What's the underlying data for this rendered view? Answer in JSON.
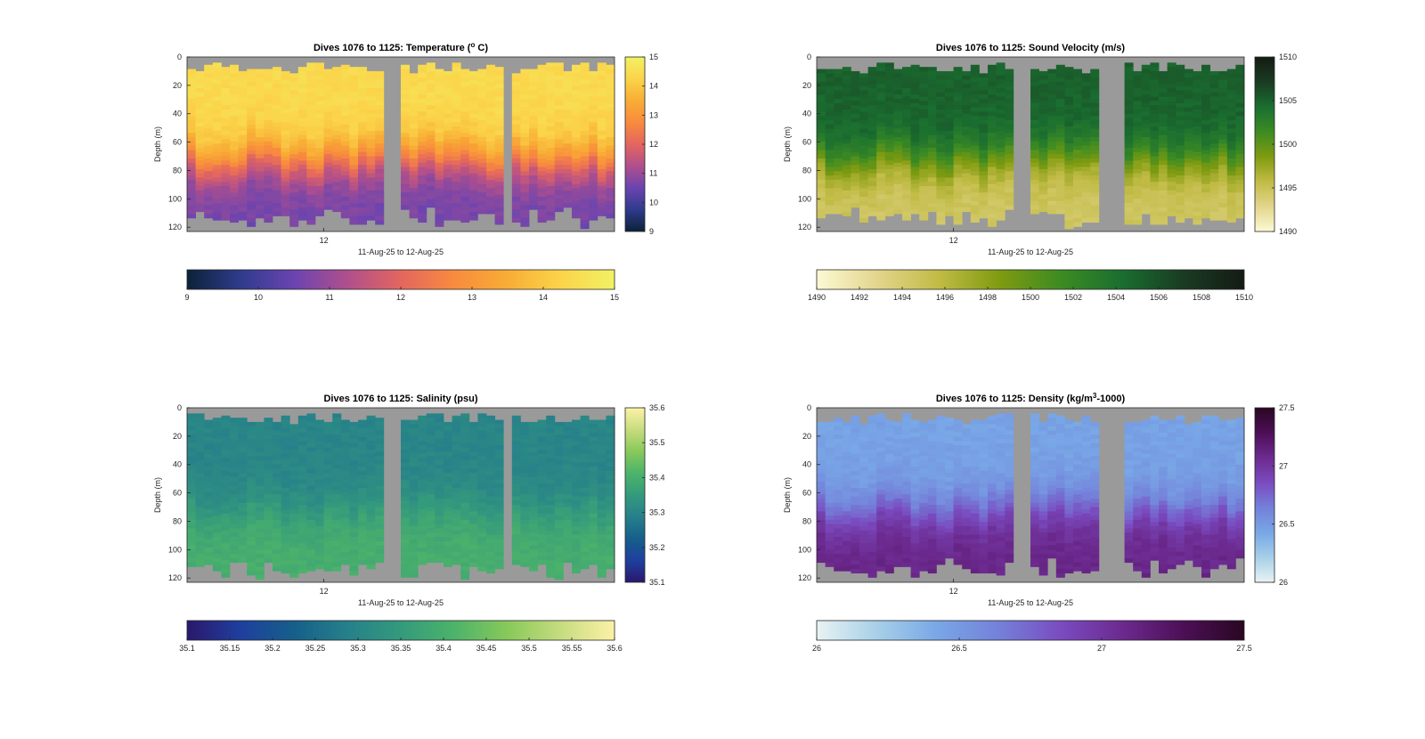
{
  "chart_data": [
    {
      "type": "heatmap",
      "title": "Dives 1076 to 1125: Temperature (° C)",
      "title_parts": {
        "before": "Dives 1076 to 1125: Temperature (",
        "sup": "o",
        "after": " C)"
      },
      "xlabel": "11-Aug-25 to 12-Aug-25",
      "ylabel": "Depth (m)",
      "x_tick_labels": [
        "12"
      ],
      "y_ticks": [
        0,
        20,
        40,
        60,
        80,
        100,
        120
      ],
      "ylim": [
        0,
        123
      ],
      "dives": [
        1076,
        1125
      ],
      "missing_dives": [
        1099,
        1100,
        1113
      ],
      "profile": {
        "surface": 14.4,
        "deep": 10.6,
        "transition_depth_m": [
          55,
          78
        ]
      },
      "colormap": [
        "#0b2238",
        "#2f3b8c",
        "#6a44b0",
        "#b04f8c",
        "#e3665f",
        "#f88b3e",
        "#f8ad35",
        "#fbd44a",
        "#f1f165"
      ],
      "vertical_colorbar": {
        "min": 9,
        "max": 15,
        "ticks": [
          9,
          10,
          11,
          12,
          13,
          14,
          15
        ]
      },
      "horizontal_colorbar": {
        "min": 9,
        "max": 15,
        "ticks": [
          9,
          10,
          11,
          12,
          13,
          14,
          15
        ],
        "tick_labels": [
          "9",
          "10",
          "11",
          "12",
          "13",
          "14",
          "15"
        ]
      }
    },
    {
      "type": "heatmap",
      "title": "Dives 1076 to 1125: Sound Velocity (m/s)",
      "xlabel": "11-Aug-25 to 12-Aug-25",
      "ylabel": "Depth (m)",
      "x_tick_labels": [
        "12"
      ],
      "y_ticks": [
        0,
        20,
        40,
        60,
        80,
        100,
        120
      ],
      "ylim": [
        0,
        123
      ],
      "dives": [
        1076,
        1125
      ],
      "missing_dives": [
        1099,
        1100,
        1109,
        1110,
        1111
      ],
      "profile": {
        "surface": 1505,
        "deep": 1494.5,
        "transition_depth_m": [
          55,
          78
        ]
      },
      "colormap": [
        "#fdf9d4",
        "#e2d58c",
        "#c1bb45",
        "#7f9b10",
        "#3c8b23",
        "#1a6e30",
        "#1a3b22",
        "#141b14"
      ],
      "vertical_colorbar": {
        "min": 1490,
        "max": 1510,
        "ticks": [
          1490,
          1495,
          1500,
          1505,
          1510
        ]
      },
      "horizontal_colorbar": {
        "min": 1490,
        "max": 1510,
        "ticks": [
          1490,
          1492,
          1494,
          1496,
          1498,
          1500,
          1502,
          1504,
          1506,
          1508,
          1510
        ],
        "tick_labels": [
          "1490",
          "1492",
          "1494",
          "1496",
          "1498",
          "1500",
          "1502",
          "1504",
          "1506",
          "1508",
          "1510"
        ]
      }
    },
    {
      "type": "heatmap",
      "title": "Dives 1076 to 1125: Salinity (psu)",
      "xlabel": "11-Aug-25 to 12-Aug-25",
      "ylabel": "Depth (m)",
      "x_tick_labels": [
        "12"
      ],
      "y_ticks": [
        0,
        20,
        40,
        60,
        80,
        100,
        120
      ],
      "ylim": [
        0,
        123
      ],
      "dives": [
        1076,
        1125
      ],
      "missing_dives": [
        1099,
        1100,
        1113
      ],
      "profile": {
        "surface": 35.3,
        "deep": 35.4,
        "transition_depth_m": [
          55,
          78
        ]
      },
      "colormap": [
        "#2a186c",
        "#1f3f9e",
        "#165f8a",
        "#26808a",
        "#349a7c",
        "#4cb36a",
        "#88c95a",
        "#c7dc7f",
        "#fdf1a7"
      ],
      "vertical_colorbar": {
        "min": 35.1,
        "max": 35.6,
        "ticks": [
          35.1,
          35.2,
          35.3,
          35.4,
          35.5,
          35.6
        ]
      },
      "horizontal_colorbar": {
        "min": 35.1,
        "max": 35.6,
        "ticks": [
          35.1,
          35.15,
          35.2,
          35.25,
          35.3,
          35.35,
          35.4,
          35.45,
          35.5,
          35.55,
          35.6
        ],
        "tick_labels": [
          "35.1",
          "35.15",
          "35.2",
          "35.25",
          "35.3",
          "35.35",
          "35.4",
          "35.45",
          "35.5",
          "35.55",
          "35.6"
        ]
      }
    },
    {
      "type": "heatmap",
      "title": "Dives 1076 to 1125: Density (kg/m³-1000)",
      "title_parts": {
        "before": "Dives 1076 to 1125: Density (kg/m",
        "sup": "3",
        "after": "-1000)"
      },
      "xlabel": "11-Aug-25 to 12-Aug-25",
      "ylabel": "Depth (m)",
      "x_tick_labels": [
        "12"
      ],
      "y_ticks": [
        0,
        20,
        40,
        60,
        80,
        100,
        120
      ],
      "ylim": [
        0,
        123
      ],
      "dives": [
        1076,
        1125
      ],
      "missing_dives": [
        1099,
        1100,
        1109,
        1110,
        1111
      ],
      "profile": {
        "surface": 26.45,
        "deep": 27.1,
        "transition_depth_m": [
          55,
          78
        ]
      },
      "colormap": [
        "#e8f3f3",
        "#a6cfe8",
        "#78a6e6",
        "#7480d9",
        "#7a4bc0",
        "#6c2a8f",
        "#4c0f56",
        "#2a0722"
      ],
      "vertical_colorbar": {
        "min": 26,
        "max": 27.5,
        "ticks": [
          26,
          26.5,
          27,
          27.5
        ]
      },
      "horizontal_colorbar": {
        "min": 26,
        "max": 27.5,
        "ticks": [
          26,
          26.5,
          27,
          27.5
        ],
        "tick_labels": [
          "26",
          "26.5",
          "27",
          "27.5"
        ]
      }
    }
  ],
  "colors": {
    "missing_data": "#9a9a9a",
    "axes": "#262626"
  }
}
